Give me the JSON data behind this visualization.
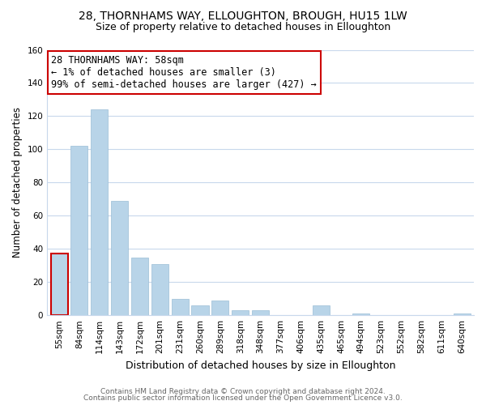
{
  "title": "28, THORNHAMS WAY, ELLOUGHTON, BROUGH, HU15 1LW",
  "subtitle": "Size of property relative to detached houses in Elloughton",
  "xlabel": "Distribution of detached houses by size in Elloughton",
  "ylabel": "Number of detached properties",
  "categories": [
    "55sqm",
    "84sqm",
    "114sqm",
    "143sqm",
    "172sqm",
    "201sqm",
    "231sqm",
    "260sqm",
    "289sqm",
    "318sqm",
    "348sqm",
    "377sqm",
    "406sqm",
    "435sqm",
    "465sqm",
    "494sqm",
    "523sqm",
    "552sqm",
    "582sqm",
    "611sqm",
    "640sqm"
  ],
  "values": [
    37,
    102,
    124,
    69,
    35,
    31,
    10,
    6,
    9,
    3,
    3,
    0,
    0,
    6,
    0,
    1,
    0,
    0,
    0,
    0,
    1
  ],
  "bar_color": "#b8d4e8",
  "bar_edge_color": "#9abdd6",
  "highlight_bar_index": 0,
  "highlight_edge_color": "#cc0000",
  "annotation_box_edge_color": "#cc0000",
  "annotation_lines": [
    "28 THORNHAMS WAY: 58sqm",
    "← 1% of detached houses are smaller (3)",
    "99% of semi-detached houses are larger (427) →"
  ],
  "ylim": [
    0,
    160
  ],
  "yticks": [
    0,
    20,
    40,
    60,
    80,
    100,
    120,
    140,
    160
  ],
  "footnote1": "Contains HM Land Registry data © Crown copyright and database right 2024.",
  "footnote2": "Contains public sector information licensed under the Open Government Licence v3.0.",
  "background_color": "#ffffff",
  "grid_color": "#c8d8ec",
  "title_fontsize": 10,
  "subtitle_fontsize": 9,
  "xlabel_fontsize": 9,
  "ylabel_fontsize": 8.5,
  "tick_fontsize": 7.5,
  "annotation_fontsize": 8.5,
  "footnote_fontsize": 6.5
}
